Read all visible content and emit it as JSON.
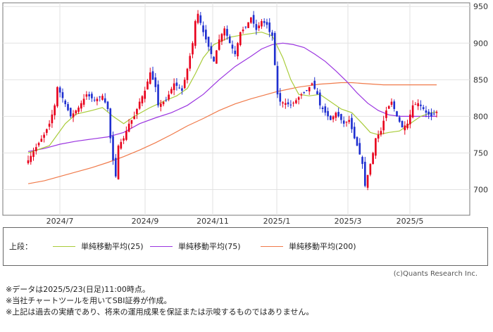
{
  "chart_data": {
    "type": "candlestick",
    "x_ticks": [
      "2024/7",
      "2024/9",
      "2024/11",
      "2025/1",
      "2025/3",
      "2025/5"
    ],
    "y_ticks": [
      950,
      900,
      850,
      800,
      750,
      700
    ],
    "ylim": [
      665,
      955
    ],
    "grid": true,
    "up_color": "#e8001c",
    "down_color": "#1f2fd0",
    "price_path": [
      [
        0,
        740
      ],
      [
        3,
        758
      ],
      [
        6,
        775
      ],
      [
        8,
        790
      ],
      [
        10,
        815
      ],
      [
        11,
        840
      ],
      [
        13,
        825
      ],
      [
        16,
        800
      ],
      [
        19,
        812
      ],
      [
        22,
        830
      ],
      [
        25,
        822
      ],
      [
        28,
        828
      ],
      [
        30,
        810
      ],
      [
        31,
        770
      ],
      [
        32,
        740
      ],
      [
        33,
        718
      ],
      [
        34,
        760
      ],
      [
        36,
        770
      ],
      [
        38,
        790
      ],
      [
        40,
        800
      ],
      [
        42,
        820
      ],
      [
        44,
        835
      ],
      [
        46,
        860
      ],
      [
        48,
        840
      ],
      [
        49,
        815
      ],
      [
        52,
        822
      ],
      [
        55,
        845
      ],
      [
        58,
        835
      ],
      [
        60,
        865
      ],
      [
        62,
        900
      ],
      [
        63,
        930
      ],
      [
        64,
        940
      ],
      [
        66,
        915
      ],
      [
        68,
        895
      ],
      [
        70,
        875
      ],
      [
        72,
        905
      ],
      [
        74,
        920
      ],
      [
        76,
        900
      ],
      [
        78,
        885
      ],
      [
        80,
        915
      ],
      [
        82,
        922
      ],
      [
        84,
        935
      ],
      [
        86,
        918
      ],
      [
        88,
        930
      ],
      [
        90,
        925
      ],
      [
        91,
        915
      ],
      [
        92,
        910
      ],
      [
        94,
        830
      ],
      [
        95,
        820
      ],
      [
        97,
        818
      ],
      [
        99,
        815
      ],
      [
        101,
        822
      ],
      [
        103,
        830
      ],
      [
        105,
        835
      ],
      [
        107,
        845
      ],
      [
        109,
        830
      ],
      [
        110,
        815
      ],
      [
        112,
        805
      ],
      [
        114,
        795
      ],
      [
        116,
        805
      ],
      [
        118,
        795
      ],
      [
        119,
        790
      ],
      [
        121,
        795
      ],
      [
        123,
        770
      ],
      [
        124,
        760
      ],
      [
        125,
        748
      ],
      [
        126,
        735
      ],
      [
        127,
        705
      ],
      [
        128,
        720
      ],
      [
        129,
        735
      ],
      [
        130,
        750
      ],
      [
        131,
        770
      ],
      [
        133,
        780
      ],
      [
        135,
        808
      ],
      [
        137,
        820
      ],
      [
        139,
        800
      ],
      [
        141,
        785
      ],
      [
        143,
        790
      ],
      [
        145,
        815
      ],
      [
        147,
        818
      ],
      [
        149,
        810
      ],
      [
        150,
        805
      ],
      [
        152,
        800
      ],
      [
        154,
        806
      ]
    ],
    "series": [
      {
        "name": "単純移動平均(25)",
        "color": "#a9cc3a",
        "points": [
          [
            0,
            750
          ],
          [
            8,
            760
          ],
          [
            14,
            790
          ],
          [
            18,
            803
          ],
          [
            24,
            808
          ],
          [
            28,
            812
          ],
          [
            32,
            800
          ],
          [
            36,
            790
          ],
          [
            40,
            800
          ],
          [
            46,
            812
          ],
          [
            52,
            822
          ],
          [
            56,
            828
          ],
          [
            60,
            838
          ],
          [
            63,
            858
          ],
          [
            66,
            880
          ],
          [
            70,
            898
          ],
          [
            76,
            908
          ],
          [
            82,
            912
          ],
          [
            88,
            915
          ],
          [
            92,
            910
          ],
          [
            96,
            880
          ],
          [
            99,
            850
          ],
          [
            102,
            830
          ],
          [
            106,
            828
          ],
          [
            110,
            830
          ],
          [
            114,
            820
          ],
          [
            118,
            810
          ],
          [
            122,
            805
          ],
          [
            126,
            790
          ],
          [
            129,
            778
          ],
          [
            132,
            775
          ],
          [
            136,
            778
          ],
          [
            140,
            780
          ],
          [
            144,
            790
          ],
          [
            148,
            800
          ],
          [
            152,
            805
          ],
          [
            154,
            806
          ]
        ]
      },
      {
        "name": "単純移動平均(75)",
        "color": "#9b35e0",
        "points": [
          [
            0,
            752
          ],
          [
            6,
            756
          ],
          [
            12,
            762
          ],
          [
            18,
            766
          ],
          [
            24,
            769
          ],
          [
            30,
            772
          ],
          [
            36,
            778
          ],
          [
            42,
            790
          ],
          [
            48,
            798
          ],
          [
            54,
            805
          ],
          [
            60,
            815
          ],
          [
            66,
            830
          ],
          [
            72,
            850
          ],
          [
            78,
            868
          ],
          [
            84,
            882
          ],
          [
            88,
            892
          ],
          [
            92,
            898
          ],
          [
            96,
            900
          ],
          [
            100,
            898
          ],
          [
            104,
            894
          ],
          [
            108,
            885
          ],
          [
            112,
            875
          ],
          [
            116,
            862
          ],
          [
            120,
            848
          ],
          [
            124,
            832
          ],
          [
            128,
            818
          ],
          [
            132,
            808
          ],
          [
            136,
            802
          ],
          [
            140,
            800
          ],
          [
            144,
            800
          ],
          [
            148,
            800
          ],
          [
            152,
            800
          ],
          [
            154,
            800
          ]
        ]
      },
      {
        "name": "単純移動平均(200)",
        "color": "#f07a4a",
        "points": [
          [
            0,
            708
          ],
          [
            6,
            712
          ],
          [
            12,
            718
          ],
          [
            18,
            724
          ],
          [
            24,
            730
          ],
          [
            30,
            737
          ],
          [
            36,
            745
          ],
          [
            42,
            754
          ],
          [
            48,
            764
          ],
          [
            54,
            775
          ],
          [
            60,
            787
          ],
          [
            66,
            797
          ],
          [
            72,
            808
          ],
          [
            78,
            817
          ],
          [
            84,
            824
          ],
          [
            90,
            830
          ],
          [
            94,
            834
          ],
          [
            98,
            837
          ],
          [
            102,
            840
          ],
          [
            106,
            842
          ],
          [
            110,
            844
          ],
          [
            114,
            845
          ],
          [
            118,
            846
          ],
          [
            122,
            846
          ],
          [
            126,
            845
          ],
          [
            130,
            844
          ],
          [
            134,
            843
          ],
          [
            138,
            843
          ],
          [
            142,
            843
          ],
          [
            146,
            843
          ],
          [
            150,
            843
          ],
          [
            154,
            843
          ]
        ]
      }
    ]
  },
  "legend": {
    "prefix": "上段：",
    "items": [
      {
        "label": "単純移動平均(25)",
        "color": "#a9cc3a"
      },
      {
        "label": "単純移動平均(75)",
        "color": "#9b35e0"
      },
      {
        "label": "単純移動平均(200)",
        "color": "#f07a4a"
      }
    ]
  },
  "credit": "(c)Quants Research Inc.",
  "footnotes": [
    "※データは2025/5/23(日足)11:00時点。",
    "※当社チャートツールを用いてSBI証券が作成。",
    "※上記は過去の実績であり、将来の運用成果を保証または示唆するものではありません。"
  ]
}
